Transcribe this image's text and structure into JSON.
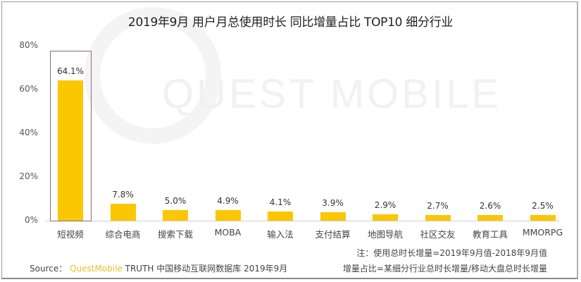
{
  "chart_data": {
    "type": "bar",
    "title": "2019年9月 用户月总使用时长 同比增量占比 TOP10 细分行业",
    "categories": [
      "短视频",
      "综合电商",
      "搜索下载",
      "MOBA",
      "输入法",
      "支付结算",
      "地图导航",
      "社区交友",
      "教育工具",
      "MMORPG"
    ],
    "values": [
      64.1,
      7.8,
      5.0,
      4.9,
      4.1,
      3.9,
      2.9,
      2.7,
      2.6,
      2.5
    ],
    "value_labels": [
      "64.1%",
      "7.8%",
      "5.0%",
      "4.9%",
      "4.1%",
      "3.9%",
      "2.9%",
      "2.7%",
      "2.6%",
      "2.5%"
    ],
    "xlabel": "",
    "ylabel": "",
    "ylim": [
      0,
      80
    ],
    "yticks": [
      "0%",
      "20%",
      "40%",
      "60%",
      "80%"
    ],
    "grid": false,
    "legend": null,
    "bar_color": "#fbc602",
    "highlighted_category": "短视频",
    "annotations": [
      "注：使用总时长增量=2019年9月值-2018年9月值",
      "增量占比=某细分行业总时长增量/移动大盘总时长增量"
    ]
  },
  "watermark": "QUEST MOBILE",
  "footer": {
    "source_label": "Source：",
    "source_brand": "QuestMobile",
    "source_text": "TRUTH 中国移动互联网数据库 2019年9月",
    "note1": "注：使用总时长增量=2019年9月值-2018年9月值",
    "note2": "增量占比=某细分行业总时长增量/移动大盘总时长增量"
  }
}
